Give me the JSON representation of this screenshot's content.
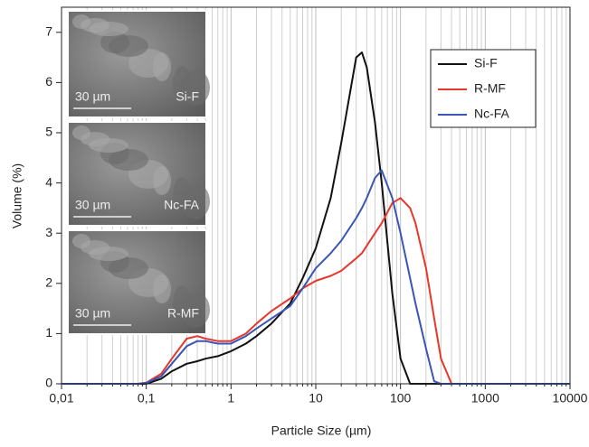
{
  "chart_data": {
    "type": "line",
    "xlabel": "Particle Size (µm)",
    "ylabel": "Volume (%)",
    "xscale": "log",
    "grid": true,
    "xlim": [
      0.01,
      10000
    ],
    "ylim": [
      0,
      7.5
    ],
    "xticks": [
      {
        "value": 0.01,
        "label": "0,01"
      },
      {
        "value": 0.1,
        "label": "0,1"
      },
      1,
      10,
      100,
      1000,
      10000
    ],
    "xminorticks": [
      0.02,
      0.03,
      0.04,
      0.05,
      0.06,
      0.07,
      0.08,
      0.09,
      0.2,
      0.3,
      0.4,
      0.5,
      0.6,
      0.7,
      0.8,
      0.9,
      2,
      3,
      4,
      5,
      6,
      7,
      8,
      9,
      20,
      30,
      40,
      50,
      60,
      70,
      80,
      90,
      200,
      300,
      400,
      500,
      600,
      700,
      800,
      900,
      2000,
      3000,
      4000,
      5000,
      6000,
      7000,
      8000,
      9000
    ],
    "yticks": [
      0,
      1,
      2,
      3,
      4,
      5,
      6,
      7
    ],
    "legend_position": "upper right",
    "x": [
      0.01,
      0.05,
      0.08,
      0.1,
      0.15,
      0.2,
      0.3,
      0.4,
      0.5,
      0.7,
      1,
      1.5,
      2,
      3,
      5,
      7,
      10,
      15,
      20,
      30,
      35,
      40,
      50,
      60,
      80,
      100,
      130,
      150,
      200,
      250,
      300,
      400,
      1000,
      10000
    ],
    "series": [
      {
        "name": "Si-F",
        "color": "#111111",
        "values": [
          0,
          0,
          0,
          0,
          0.1,
          0.25,
          0.4,
          0.45,
          0.5,
          0.55,
          0.65,
          0.8,
          0.95,
          1.2,
          1.6,
          2.1,
          2.7,
          3.7,
          4.8,
          6.5,
          6.6,
          6.3,
          5.2,
          4.0,
          1.8,
          0.5,
          0,
          0,
          0,
          0,
          0,
          0,
          0,
          0
        ]
      },
      {
        "name": "R-MF",
        "color": "#e8372a",
        "values": [
          0,
          0,
          0,
          0.02,
          0.2,
          0.5,
          0.9,
          0.95,
          0.9,
          0.85,
          0.85,
          1.0,
          1.2,
          1.45,
          1.7,
          1.9,
          2.05,
          2.15,
          2.25,
          2.5,
          2.6,
          2.75,
          3.0,
          3.2,
          3.6,
          3.7,
          3.5,
          3.2,
          2.3,
          1.3,
          0.5,
          0,
          0,
          0
        ]
      },
      {
        "name": "Nc-FA",
        "color": "#3a55b4",
        "values": [
          0,
          0,
          0,
          0.02,
          0.15,
          0.4,
          0.75,
          0.85,
          0.85,
          0.8,
          0.8,
          0.95,
          1.1,
          1.3,
          1.55,
          1.9,
          2.3,
          2.6,
          2.85,
          3.3,
          3.5,
          3.7,
          4.1,
          4.25,
          3.7,
          3.0,
          2.1,
          1.6,
          0.7,
          0.05,
          0,
          0,
          0,
          0
        ]
      }
    ],
    "insets": [
      {
        "scale_bar": "30 µm",
        "label": "Si-F"
      },
      {
        "scale_bar": "30 µm",
        "label": "Nc-FA"
      },
      {
        "scale_bar": "30 µm",
        "label": "R-MF"
      }
    ]
  }
}
